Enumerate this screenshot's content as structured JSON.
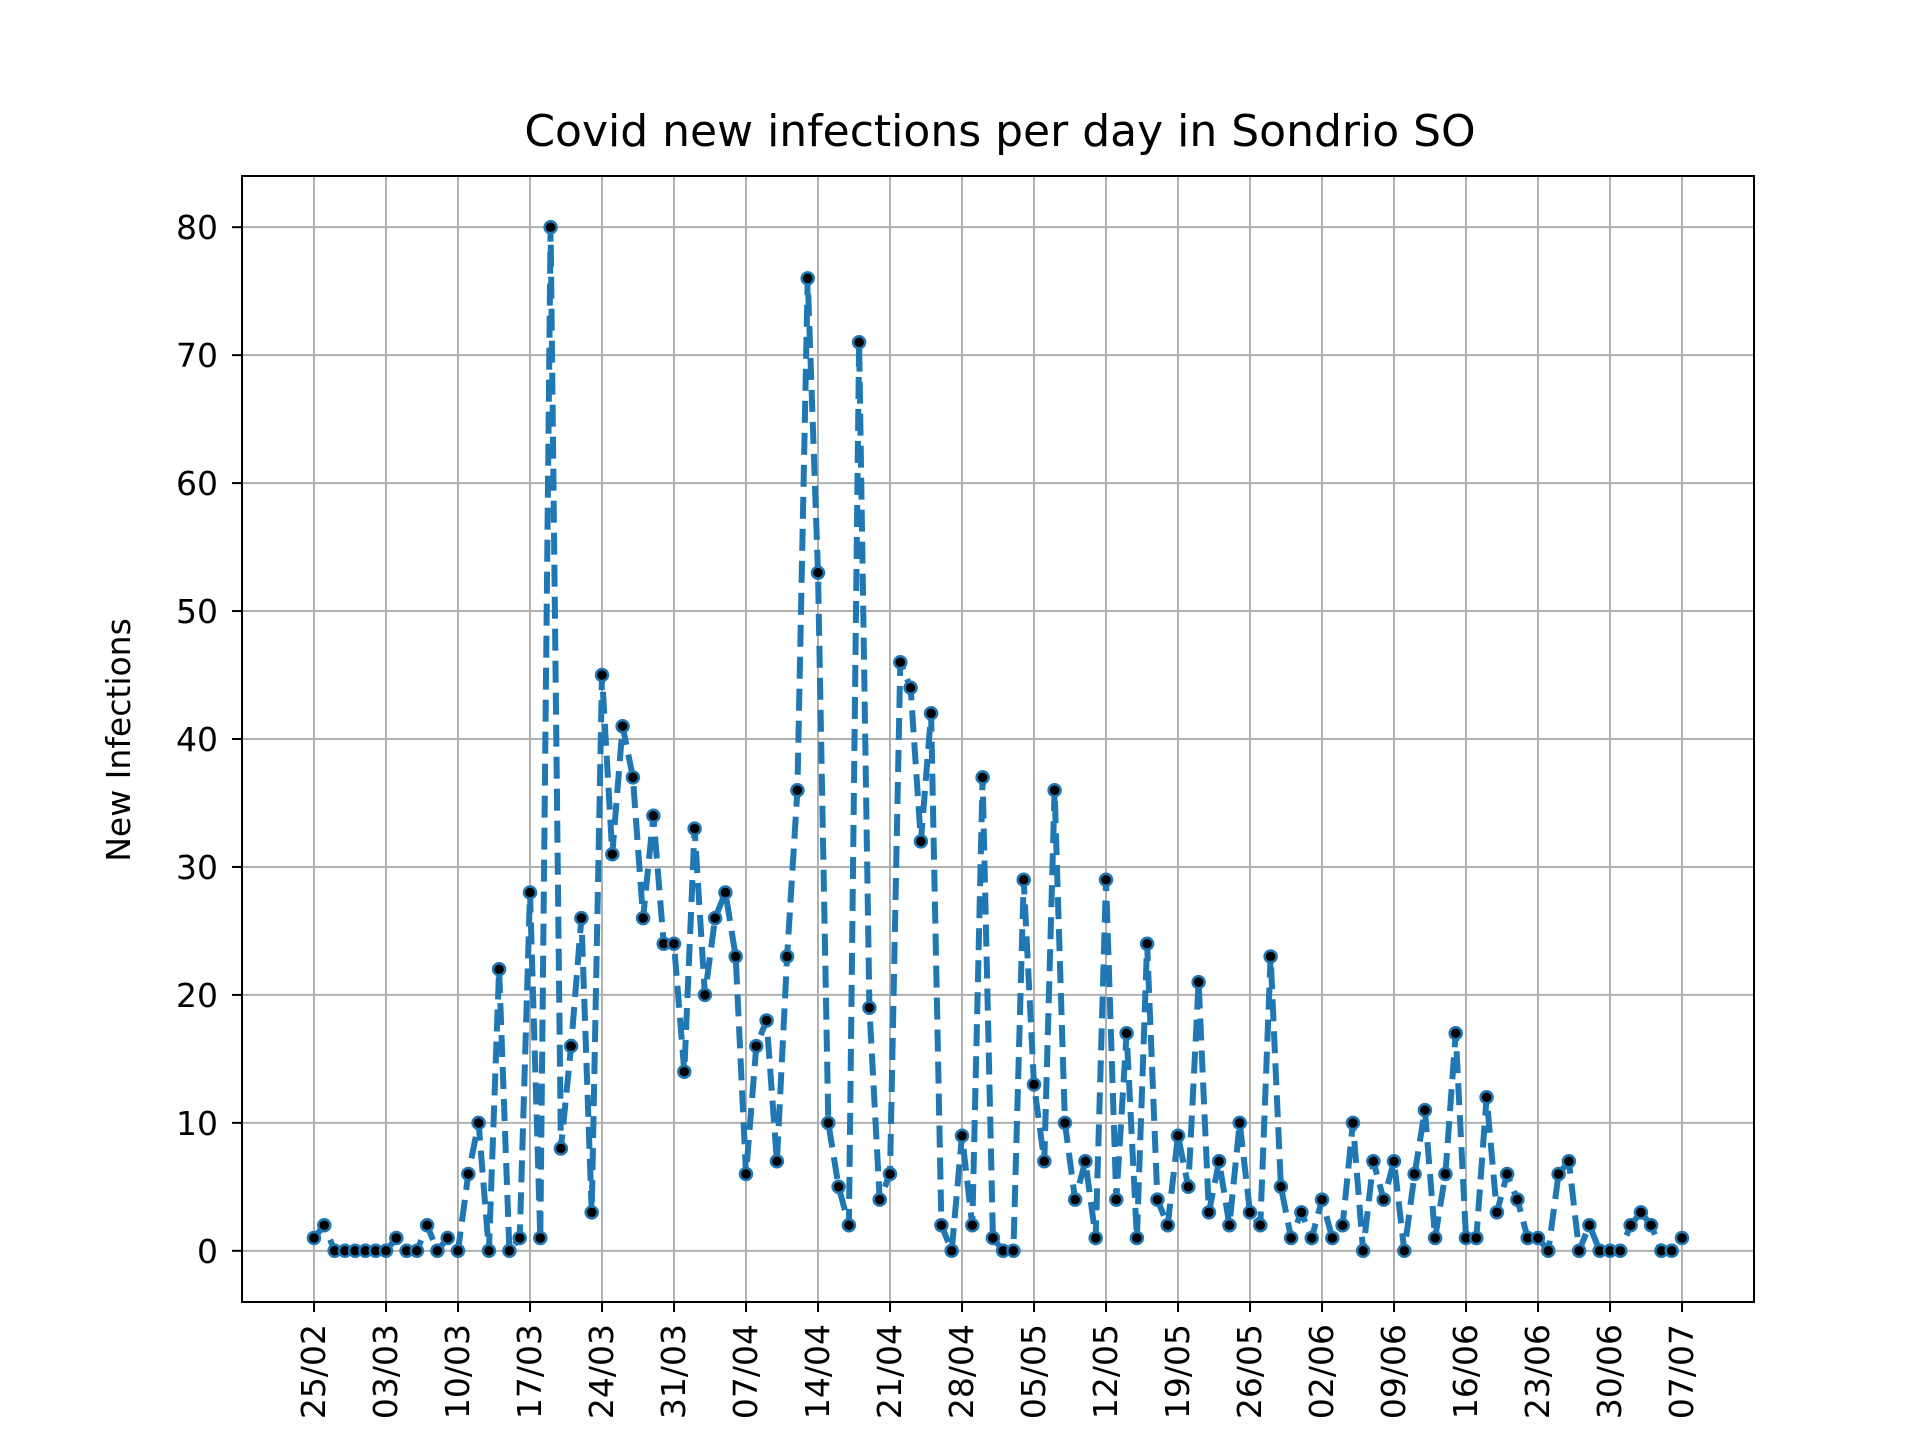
{
  "chart_data": {
    "type": "line",
    "title": "Covid new infections per day in Sondrio SO",
    "xlabel": "",
    "ylabel": "New Infections",
    "x_tick_labels": [
      "25/02",
      "03/03",
      "10/03",
      "17/03",
      "24/03",
      "31/03",
      "07/04",
      "14/04",
      "21/04",
      "28/04",
      "05/05",
      "12/05",
      "19/05",
      "26/05",
      "02/06",
      "09/06",
      "16/06",
      "23/06",
      "30/06",
      "07/07"
    ],
    "y_ticks": [
      0,
      10,
      20,
      30,
      40,
      50,
      60,
      70,
      80
    ],
    "ylim": [
      -4,
      84
    ],
    "xlim": [
      "18/02",
      "14/07"
    ],
    "grid": true,
    "series": [
      {
        "color": "#1f77b4",
        "marker_color": "#000000",
        "line_style": "dashed",
        "x": [
          "25/02",
          "26/02",
          "27/02",
          "28/02",
          "29/02",
          "01/03",
          "02/03",
          "03/03",
          "04/03",
          "05/03",
          "06/03",
          "07/03",
          "08/03",
          "09/03",
          "10/03",
          "11/03",
          "12/03",
          "13/03",
          "14/03",
          "15/03",
          "16/03",
          "17/03",
          "18/03",
          "19/03",
          "20/03",
          "21/03",
          "22/03",
          "23/03",
          "24/03",
          "25/03",
          "26/03",
          "27/03",
          "28/03",
          "29/03",
          "30/03",
          "31/03",
          "01/04",
          "02/04",
          "03/04",
          "04/04",
          "05/04",
          "06/04",
          "07/04",
          "08/04",
          "09/04",
          "10/04",
          "11/04",
          "12/04",
          "13/04",
          "14/04",
          "15/04",
          "16/04",
          "17/04",
          "18/04",
          "19/04",
          "20/04",
          "21/04",
          "22/04",
          "23/04",
          "24/04",
          "25/04",
          "26/04",
          "27/04",
          "28/04",
          "29/04",
          "30/04",
          "01/05",
          "02/05",
          "03/05",
          "04/05",
          "05/05",
          "06/05",
          "07/05",
          "08/05",
          "09/05",
          "10/05",
          "11/05",
          "12/05",
          "13/05",
          "14/05",
          "15/05",
          "16/05",
          "17/05",
          "18/05",
          "19/05",
          "20/05",
          "21/05",
          "22/05",
          "23/05",
          "24/05",
          "25/05",
          "26/05",
          "27/05",
          "28/05",
          "29/05",
          "30/05",
          "31/05",
          "01/06",
          "02/06",
          "03/06",
          "04/06",
          "05/06",
          "06/06",
          "07/06",
          "08/06",
          "09/06",
          "10/06",
          "11/06",
          "12/06",
          "13/06",
          "14/06",
          "15/06",
          "16/06",
          "17/06",
          "18/06",
          "19/06",
          "20/06",
          "21/06",
          "22/06",
          "23/06",
          "24/06",
          "25/06",
          "26/06",
          "27/06",
          "28/06",
          "29/06",
          "30/06",
          "01/07",
          "02/07",
          "03/07",
          "04/07",
          "05/07",
          "06/07",
          "07/07"
        ],
        "y": [
          1,
          2,
          0,
          0,
          0,
          0,
          0,
          0,
          1,
          0,
          0,
          2,
          0,
          1,
          0,
          6,
          10,
          0,
          22,
          0,
          1,
          28,
          1,
          80,
          8,
          16,
          26,
          3,
          45,
          31,
          41,
          37,
          26,
          34,
          24,
          24,
          14,
          33,
          20,
          26,
          28,
          23,
          6,
          16,
          18,
          7,
          23,
          36,
          76,
          53,
          10,
          5,
          2,
          71,
          19,
          4,
          6,
          46,
          44,
          32,
          42,
          2,
          0,
          9,
          2,
          37,
          1,
          0,
          0,
          29,
          13,
          7,
          36,
          10,
          4,
          7,
          1,
          29,
          4,
          17,
          1,
          24,
          4,
          2,
          9,
          5,
          21,
          3,
          7,
          2,
          10,
          3,
          2,
          23,
          5,
          1,
          3,
          1,
          4,
          1,
          2,
          10,
          0,
          7,
          4,
          7,
          0,
          6,
          11,
          1,
          6,
          17,
          1,
          1,
          12,
          3,
          6,
          4,
          1,
          1,
          0,
          6,
          7,
          0,
          2,
          0,
          0,
          0,
          2,
          3,
          2,
          0,
          0,
          1
        ]
      }
    ]
  }
}
